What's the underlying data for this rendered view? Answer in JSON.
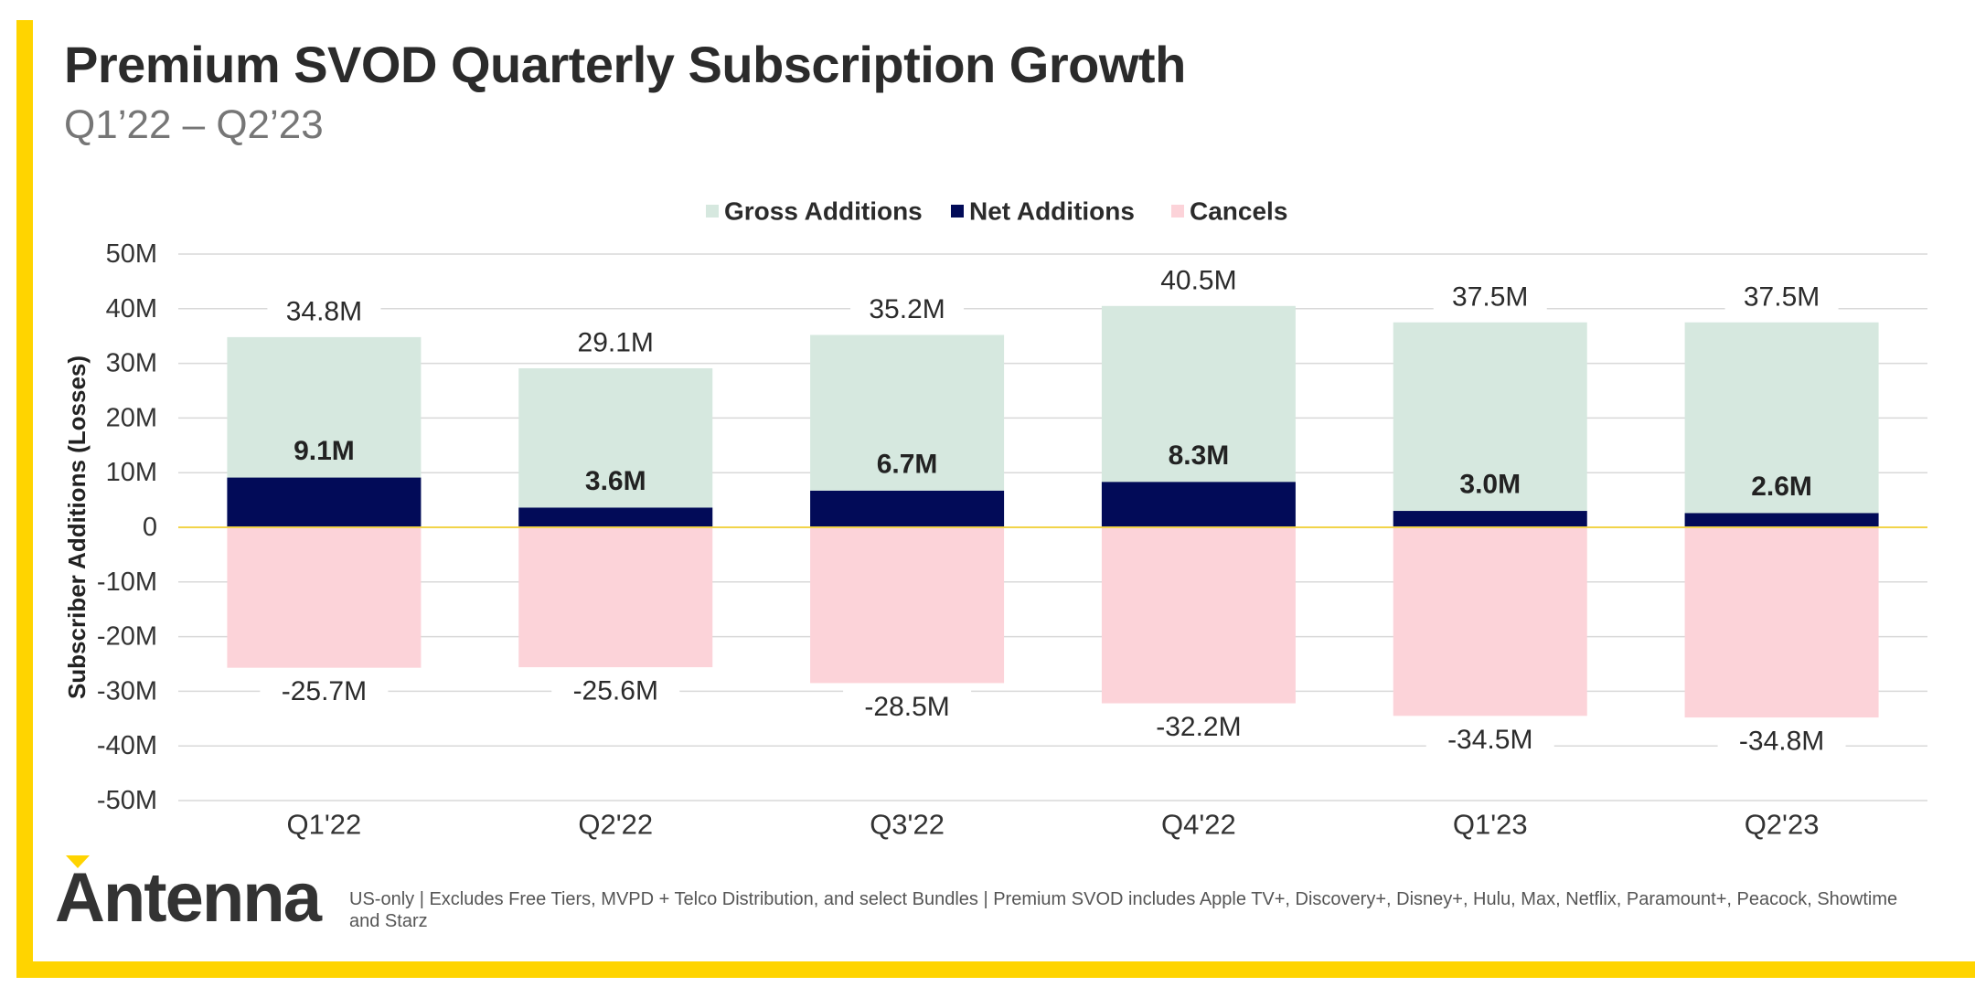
{
  "title": "Premium SVOD Quarterly Subscription Growth",
  "subtitle": "Q1’22 – Q2’23",
  "footnote": "US-only | Excludes Free Tiers, MVPD + Telco Distribution, and select Bundles | Premium SVOD includes Apple TV+, Discovery+, Disney+, Hulu, Max, Netflix, Paramount+, Peacock, Showtime and Starz",
  "logo": {
    "text": "Antenna"
  },
  "colors": {
    "gross": "#d6e8df",
    "net": "#020b58",
    "cancels": "#fcd3d9",
    "accent": "#ffd400",
    "zero_line": "#f2d44a",
    "grid": "#d9d9d9",
    "text": "#2b2b2b"
  },
  "chart_data": {
    "type": "bar",
    "stacked": true,
    "categories": [
      "Q1'22",
      "Q2'22",
      "Q3'22",
      "Q4'22",
      "Q1'23",
      "Q2'23"
    ],
    "series": [
      {
        "name": "Gross Additions",
        "key": "gross",
        "values": [
          34.8,
          29.1,
          35.2,
          40.5,
          37.5,
          37.5
        ],
        "labels": [
          "34.8M",
          "29.1M",
          "35.2M",
          "40.5M",
          "37.5M",
          "37.5M"
        ]
      },
      {
        "name": "Net Additions",
        "key": "net",
        "values": [
          9.1,
          3.6,
          6.7,
          8.3,
          3.0,
          2.6
        ],
        "labels": [
          "9.1M",
          "3.6M",
          "6.7M",
          "8.3M",
          "3.0M",
          "2.6M"
        ]
      },
      {
        "name": "Cancels",
        "key": "cancels",
        "values": [
          -25.7,
          -25.6,
          -28.5,
          -32.2,
          -34.5,
          -34.8
        ],
        "labels": [
          "-25.7M",
          "-25.6M",
          "-28.5M",
          "-32.2M",
          "-34.5M",
          "-34.8M"
        ]
      }
    ],
    "ylabel": "Subscriber Additions (Losses)",
    "ylim": [
      -50,
      50
    ],
    "yticks": [
      {
        "value": 50,
        "label": "50M"
      },
      {
        "value": 40,
        "label": "40M"
      },
      {
        "value": 30,
        "label": "30M"
      },
      {
        "value": 20,
        "label": "20M"
      },
      {
        "value": 10,
        "label": "10M"
      },
      {
        "value": 0,
        "label": "0"
      },
      {
        "value": -10,
        "label": "-10M"
      },
      {
        "value": -20,
        "label": "-20M"
      },
      {
        "value": -30,
        "label": "-30M"
      },
      {
        "value": -40,
        "label": "-40M"
      },
      {
        "value": -50,
        "label": "-50M"
      }
    ],
    "grid": true,
    "legend_position": "top-center"
  }
}
